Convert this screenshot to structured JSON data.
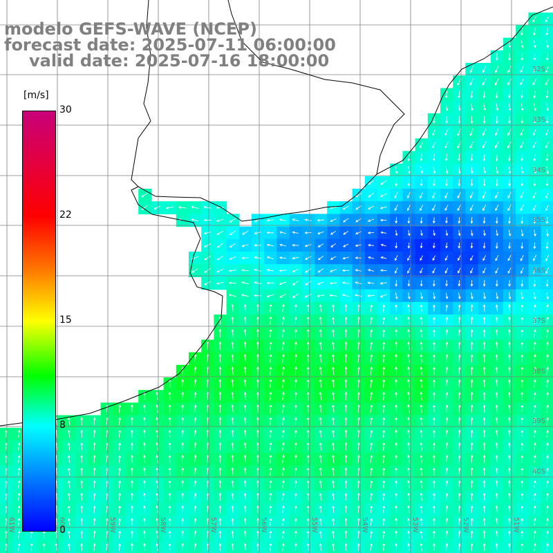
{
  "title": {
    "line1": "modelo GEFS-WAVE (NCEP)",
    "line2": "forecast date: 2025-07-11 06:00:00",
    "line3": "valid date: 2025-07-16 18:00:00"
  },
  "colorbar": {
    "units": "[m/s]",
    "ticks": [
      "30",
      "22",
      "15",
      "8",
      "0"
    ],
    "colors": [
      "#c8007a",
      "#ff0000",
      "#ff7a00",
      "#ffff00",
      "#00ff00",
      "#00ffff",
      "#0078ff",
      "#0000ff"
    ]
  },
  "lat_labels": [
    "32S",
    "33S",
    "34S",
    "35S",
    "36S",
    "37S",
    "38S",
    "39S",
    "40S"
  ],
  "lon_labels": [
    "61W",
    "60W",
    "59W",
    "58W",
    "57W",
    "56W",
    "55W",
    "54W",
    "53W",
    "52W",
    "51W"
  ],
  "colors": {
    "land": "#ffffff",
    "grid": "#7f7f7f",
    "coast": "#000000",
    "arrow": "#ffffff"
  }
}
